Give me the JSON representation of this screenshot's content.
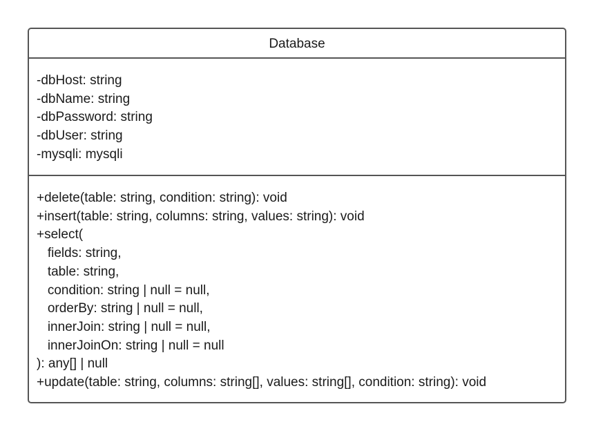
{
  "class": {
    "name": "Database",
    "attributes": [
      "-dbHost: string",
      "-dbName: string",
      "-dbPassword: string",
      "-dbUser: string",
      "-mysqli: mysqli"
    ],
    "methods": [
      "+delete(table: string, condition: string): void",
      "+insert(table: string, columns: string, values: string): void",
      "+select(",
      "   fields: string,",
      "   table: string,",
      "   condition: string | null = null,",
      "   orderBy: string | null = null,",
      "   innerJoin: string | null = null,",
      "   innerJoinOn: string | null = null",
      "): any[] | null",
      "+update(table: string, columns: string[], values: string[], condition: string): void"
    ]
  }
}
